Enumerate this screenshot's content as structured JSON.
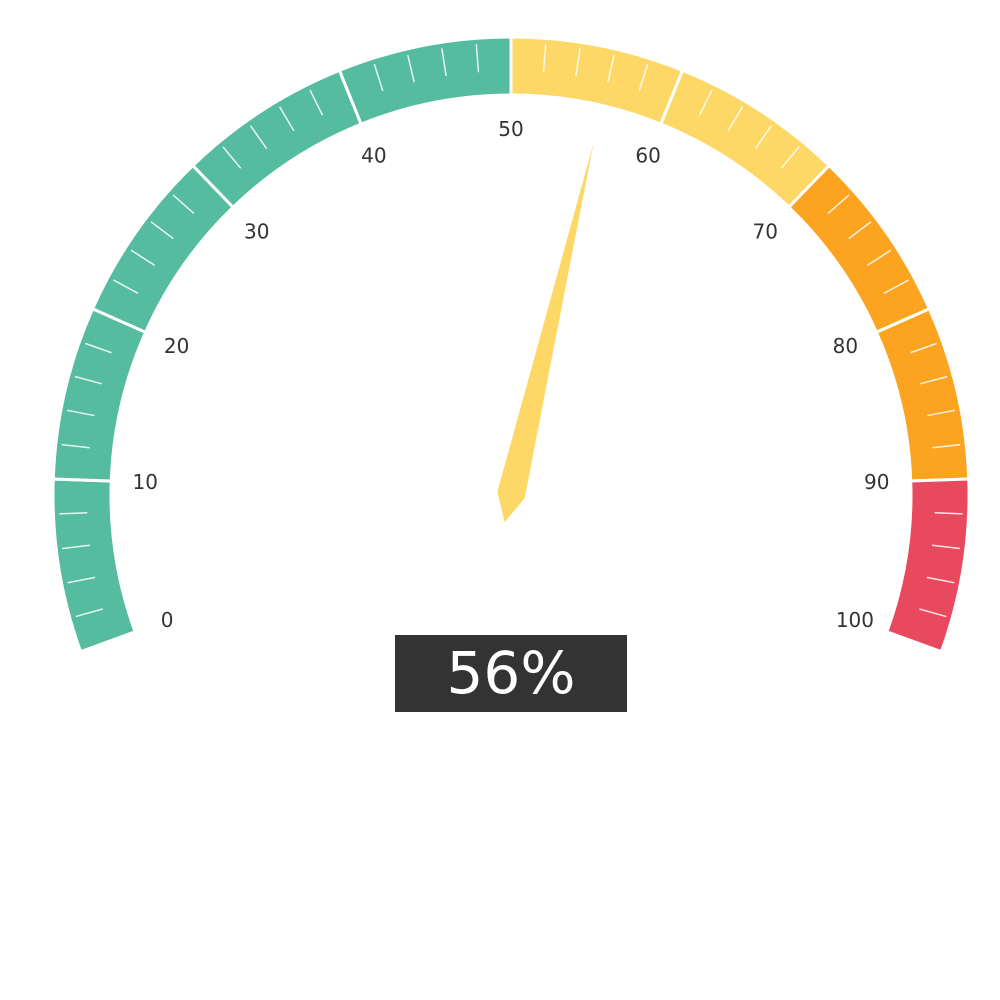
{
  "chart_data": {
    "type": "gauge",
    "min": 0,
    "max": 100,
    "value": 56,
    "value_label": "56%",
    "major_tick_labels": [
      "0",
      "10",
      "20",
      "30",
      "40",
      "50",
      "60",
      "70",
      "80",
      "90",
      "100"
    ],
    "major_step": 10,
    "minor_step": 2,
    "bands": [
      {
        "from": 0,
        "to": 50,
        "color": "#55bc9f"
      },
      {
        "from": 50,
        "to": 70,
        "color": "#fed867"
      },
      {
        "from": 70,
        "to": 90,
        "color": "#fca41f"
      },
      {
        "from": 90,
        "to": 100,
        "color": "#e8495e"
      }
    ],
    "needle_color": "#fed867",
    "value_box_color": "#333333"
  }
}
